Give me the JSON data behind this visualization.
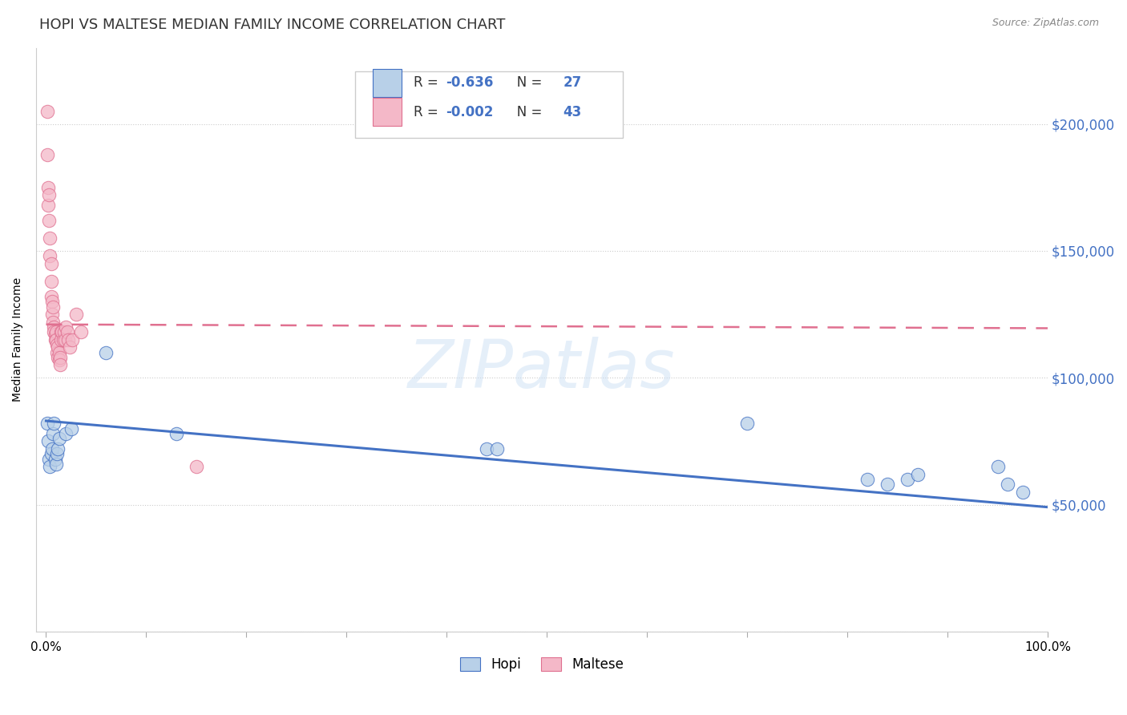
{
  "title": "HOPI VS MALTESE MEDIAN FAMILY INCOME CORRELATION CHART",
  "source": "Source: ZipAtlas.com",
  "ylabel": "Median Family Income",
  "watermark": "ZIPatlas",
  "hopi": {
    "label": "Hopi",
    "R": -0.636,
    "N": 27,
    "fill_color": "#b8d0e8",
    "edge_color": "#4472c4",
    "line_color": "#4472c4",
    "points_x": [
      0.001,
      0.002,
      0.003,
      0.004,
      0.005,
      0.006,
      0.007,
      0.008,
      0.009,
      0.01,
      0.011,
      0.012,
      0.013,
      0.02,
      0.025,
      0.06,
      0.13,
      0.44,
      0.45,
      0.7,
      0.82,
      0.84,
      0.86,
      0.87,
      0.95,
      0.96,
      0.975
    ],
    "points_y": [
      82000,
      75000,
      68000,
      65000,
      70000,
      72000,
      78000,
      82000,
      68000,
      66000,
      70000,
      72000,
      76000,
      78000,
      80000,
      110000,
      78000,
      72000,
      72000,
      82000,
      60000,
      58000,
      60000,
      62000,
      65000,
      58000,
      55000
    ],
    "line_x": [
      0.0,
      1.0
    ],
    "line_y": [
      83000,
      49000
    ]
  },
  "maltese": {
    "label": "Maltese",
    "R": -0.002,
    "N": 43,
    "fill_color": "#f4b8c8",
    "edge_color": "#e07090",
    "line_color": "#e07090",
    "points_x": [
      0.001,
      0.001,
      0.002,
      0.002,
      0.003,
      0.003,
      0.004,
      0.004,
      0.005,
      0.005,
      0.005,
      0.006,
      0.006,
      0.007,
      0.007,
      0.008,
      0.008,
      0.009,
      0.009,
      0.01,
      0.01,
      0.011,
      0.011,
      0.012,
      0.012,
      0.013,
      0.013,
      0.014,
      0.014,
      0.015,
      0.015,
      0.016,
      0.017,
      0.018,
      0.019,
      0.02,
      0.021,
      0.022,
      0.024,
      0.026,
      0.03,
      0.035,
      0.15
    ],
    "points_y": [
      205000,
      188000,
      175000,
      168000,
      172000,
      162000,
      155000,
      148000,
      145000,
      138000,
      132000,
      130000,
      125000,
      128000,
      122000,
      120000,
      118000,
      117000,
      115000,
      118000,
      115000,
      113000,
      110000,
      112000,
      108000,
      110000,
      107000,
      108000,
      105000,
      118000,
      115000,
      118000,
      115000,
      118000,
      115000,
      120000,
      118000,
      115000,
      112000,
      115000,
      125000,
      118000,
      65000
    ],
    "line_x": [
      0.0,
      1.0
    ],
    "line_y": [
      121000,
      119500
    ]
  },
  "xlim": [
    -0.01,
    1.0
  ],
  "ylim": [
    0,
    230000
  ],
  "yticks": [
    0,
    50000,
    100000,
    150000,
    200000
  ],
  "ytick_labels": [
    "",
    "$50,000",
    "$100,000",
    "$150,000",
    "$200,000"
  ],
  "xticks": [
    0.0,
    0.1,
    0.2,
    0.3,
    0.4,
    0.5,
    0.6,
    0.7,
    0.8,
    0.9,
    1.0
  ],
  "xtick_labels": [
    "0.0%",
    "",
    "",
    "",
    "",
    "",
    "",
    "",
    "",
    "",
    "100.0%"
  ],
  "grid_color": "#cccccc",
  "background_color": "#ffffff",
  "title_fontsize": 13,
  "axis_label_fontsize": 10,
  "tick_fontsize": 11,
  "ytick_color": "#4472c4",
  "r_value_color": "#4472c4",
  "n_value_color": "#4472c4",
  "r_label_color": "#333333",
  "legend_box_color": "#f0f0f0"
}
